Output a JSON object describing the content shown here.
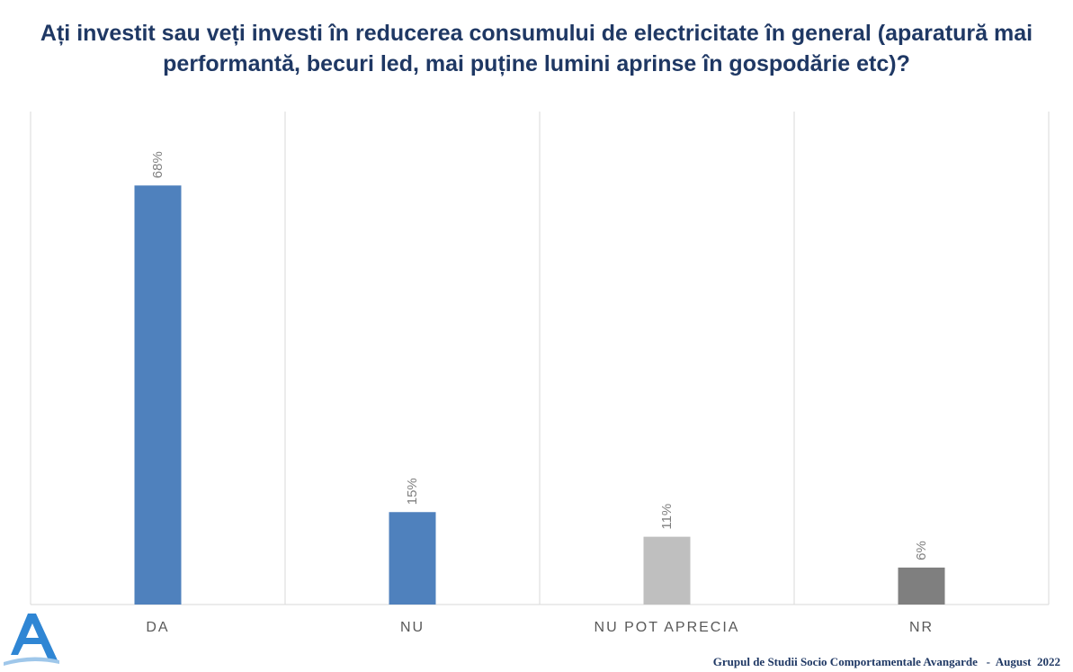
{
  "title": "Ați investit sau veți investi în reducerea consumului de electricitate în general (aparatură mai performantă, becuri led, mai puține lumini aprinse în gospodărie etc)?",
  "footer": {
    "org": "Grupul de Studii Socio Comportamentale Avangarde",
    "separator": "-",
    "date": "August  2022"
  },
  "logo": {
    "letter": "A",
    "color": "#2f86d4"
  },
  "chart_data": {
    "type": "bar",
    "title": "Ați investit sau veți investi în reducerea consumului de electricitate în general (aparatură mai performantă, becuri led, mai puține lumini aprinse în gospodărie etc)?",
    "categories": [
      "DA",
      "NU",
      "NU POT APRECIA",
      "NR"
    ],
    "values": [
      68,
      15,
      11,
      6
    ],
    "data_labels": [
      "68%",
      "15%",
      "11%",
      "6%"
    ],
    "colors": [
      "#4f81bd",
      "#4f81bd",
      "#bfbfbf",
      "#7f7f7f"
    ],
    "ylim": [
      0,
      80
    ],
    "unit": "%",
    "vertical_gridlines": true,
    "legend": "none",
    "xlabel": "",
    "ylabel": ""
  }
}
